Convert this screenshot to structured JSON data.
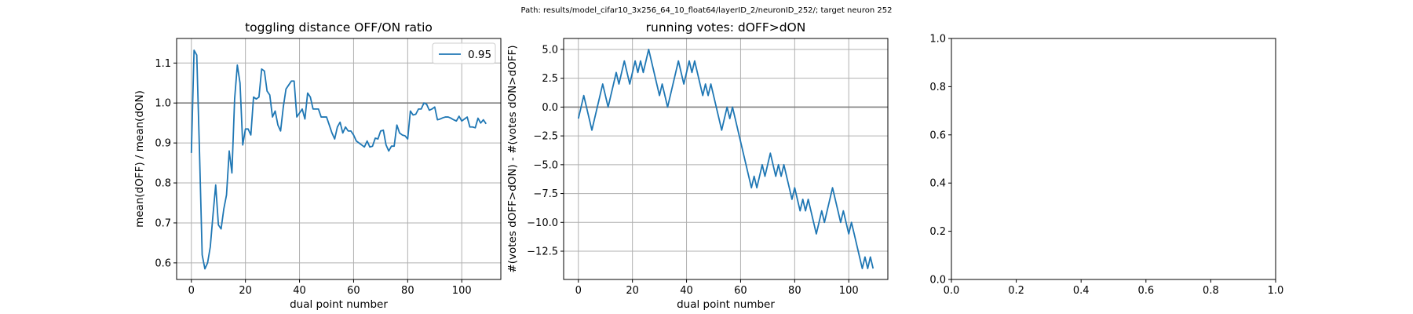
{
  "suptitle": "Path: results/model_cifar10_3x256_64_10_float64/layerID_2/neuronID_252/; target neuron 252",
  "colors": {
    "series": "#1f77b4",
    "grid": "#b0b0b0",
    "ref_line": "#808080",
    "axes": "#000000"
  },
  "chart_data": [
    {
      "type": "line",
      "title": "toggling distance OFF/ON ratio",
      "xlabel": "dual point number",
      "ylabel": "mean(dOFF) / mean(dON)",
      "xlim": [
        -5.45,
        114.45
      ],
      "ylim": [
        0.5585,
        1.1615
      ],
      "xticks": [
        0,
        20,
        40,
        60,
        80,
        100
      ],
      "xtick_labels": [
        "0",
        "20",
        "40",
        "60",
        "80",
        "100"
      ],
      "yticks": [
        0.6,
        0.7,
        0.8,
        0.9,
        1.0,
        1.1
      ],
      "ytick_labels": [
        "0.6",
        "0.7",
        "0.8",
        "0.9",
        "1.0",
        "1.1"
      ],
      "grid": true,
      "hline": 1.0,
      "legend": {
        "placement": "upper right",
        "entries": [
          "0.95"
        ]
      },
      "series": [
        {
          "name": "0.95",
          "x": [
            0,
            1,
            2,
            3,
            4,
            5,
            6,
            7,
            8,
            9,
            10,
            11,
            12,
            13,
            14,
            15,
            16,
            17,
            18,
            19,
            20,
            21,
            22,
            23,
            24,
            25,
            26,
            27,
            28,
            29,
            30,
            31,
            32,
            33,
            34,
            35,
            36,
            37,
            38,
            39,
            40,
            41,
            42,
            43,
            44,
            45,
            46,
            47,
            48,
            49,
            50,
            51,
            52,
            53,
            54,
            55,
            56,
            57,
            58,
            59,
            60,
            61,
            62,
            63,
            64,
            65,
            66,
            67,
            68,
            69,
            70,
            71,
            72,
            73,
            74,
            75,
            76,
            77,
            78,
            79,
            80,
            81,
            82,
            83,
            84,
            85,
            86,
            87,
            88,
            89,
            90,
            91,
            92,
            93,
            94,
            95,
            96,
            97,
            98,
            99,
            100,
            101,
            102,
            103,
            104,
            105,
            106,
            107,
            108,
            109
          ],
          "y": [
            0.875,
            1.132,
            1.12,
            0.88,
            0.62,
            0.585,
            0.6,
            0.64,
            0.72,
            0.795,
            0.695,
            0.685,
            0.735,
            0.77,
            0.88,
            0.825,
            1.01,
            1.095,
            1.05,
            0.895,
            0.935,
            0.935,
            0.92,
            1.015,
            1.01,
            1.015,
            1.085,
            1.08,
            1.03,
            1.02,
            0.965,
            0.98,
            0.945,
            0.93,
            0.99,
            1.035,
            1.045,
            1.055,
            1.055,
            0.965,
            0.975,
            0.985,
            0.96,
            1.025,
            1.015,
            0.985,
            0.985,
            0.985,
            0.965,
            0.965,
            0.965,
            0.945,
            0.925,
            0.91,
            0.94,
            0.952,
            0.925,
            0.94,
            0.93,
            0.93,
            0.92,
            0.905,
            0.9,
            0.895,
            0.89,
            0.905,
            0.89,
            0.892,
            0.912,
            0.91,
            0.93,
            0.932,
            0.895,
            0.88,
            0.892,
            0.892,
            0.945,
            0.925,
            0.92,
            0.918,
            0.91,
            0.98,
            0.97,
            0.972,
            0.985,
            0.985,
            1.0,
            0.997,
            0.982,
            0.985,
            0.99,
            0.958,
            0.96,
            0.963,
            0.965,
            0.965,
            0.962,
            0.958,
            0.955,
            0.967,
            0.955,
            0.96,
            0.965,
            0.94,
            0.94,
            0.938,
            0.962,
            0.95,
            0.958,
            0.948
          ]
        }
      ]
    },
    {
      "type": "line",
      "title": "running votes: dOFF>dON",
      "xlabel": "dual point number",
      "ylabel": "#(votes dOFF>dON) - #(votes dON>dOFF)",
      "xlim": [
        -5.45,
        114.45
      ],
      "ylim": [
        -14.95,
        5.95
      ],
      "xticks": [
        0,
        20,
        40,
        60,
        80,
        100
      ],
      "xtick_labels": [
        "0",
        "20",
        "40",
        "60",
        "80",
        "100"
      ],
      "yticks": [
        5.0,
        2.5,
        0.0,
        -2.5,
        -5.0,
        -7.5,
        -10.0,
        -12.5
      ],
      "ytick_labels": [
        "5.0",
        "2.5",
        "0.0",
        "−2.5",
        "−5.0",
        "−7.5",
        "−10.0",
        "−12.5"
      ],
      "grid": true,
      "hline": 0,
      "series": [
        {
          "x": [
            0,
            1,
            2,
            3,
            4,
            5,
            6,
            7,
            8,
            9,
            10,
            11,
            12,
            13,
            14,
            15,
            16,
            17,
            18,
            19,
            20,
            21,
            22,
            23,
            24,
            25,
            26,
            27,
            28,
            29,
            30,
            31,
            32,
            33,
            34,
            35,
            36,
            37,
            38,
            39,
            40,
            41,
            42,
            43,
            44,
            45,
            46,
            47,
            48,
            49,
            50,
            51,
            52,
            53,
            54,
            55,
            56,
            57,
            58,
            59,
            60,
            61,
            62,
            63,
            64,
            65,
            66,
            67,
            68,
            69,
            70,
            71,
            72,
            73,
            74,
            75,
            76,
            77,
            78,
            79,
            80,
            81,
            82,
            83,
            84,
            85,
            86,
            87,
            88,
            89,
            90,
            91,
            92,
            93,
            94,
            95,
            96,
            97,
            98,
            99,
            100,
            101,
            102,
            103,
            104,
            105,
            106,
            107,
            108,
            109
          ],
          "y": [
            -1,
            0,
            1,
            0,
            -1,
            -2,
            -1,
            0,
            1,
            2,
            1,
            0,
            1,
            2,
            3,
            2,
            3,
            4,
            3,
            2,
            3,
            4,
            3,
            4,
            3,
            4,
            5,
            4,
            3,
            2,
            1,
            2,
            1,
            0,
            1,
            2,
            3,
            4,
            3,
            2,
            3,
            4,
            3,
            4,
            3,
            2,
            1,
            2,
            1,
            2,
            1,
            0,
            -1,
            -2,
            -1,
            0,
            -1,
            0,
            -1,
            -2,
            -3,
            -4,
            -5,
            -6,
            -7,
            -6,
            -7,
            -6,
            -5,
            -6,
            -5,
            -4,
            -5,
            -6,
            -5,
            -6,
            -5,
            -6,
            -7,
            -8,
            -7,
            -8,
            -9,
            -8,
            -9,
            -8,
            -9,
            -10,
            -11,
            -10,
            -9,
            -10,
            -9,
            -8,
            -7,
            -8,
            -9,
            -10,
            -9,
            -10,
            -11,
            -10,
            -11,
            -12,
            -13,
            -14,
            -13,
            -14,
            -13,
            -14
          ]
        }
      ]
    },
    {
      "type": "line",
      "title": "",
      "xlim": [
        0,
        1
      ],
      "ylim": [
        0,
        1
      ],
      "xticks": [
        0,
        0.2,
        0.4,
        0.6,
        0.8,
        1.0
      ],
      "xtick_labels": [
        "0.0",
        "0.2",
        "0.4",
        "0.6",
        "0.8",
        "1.0"
      ],
      "yticks": [
        0,
        0.2,
        0.4,
        0.6,
        0.8,
        1.0
      ],
      "ytick_labels": [
        "0.0",
        "0.2",
        "0.4",
        "0.6",
        "0.8",
        "1.0"
      ],
      "grid": false,
      "series": []
    }
  ]
}
